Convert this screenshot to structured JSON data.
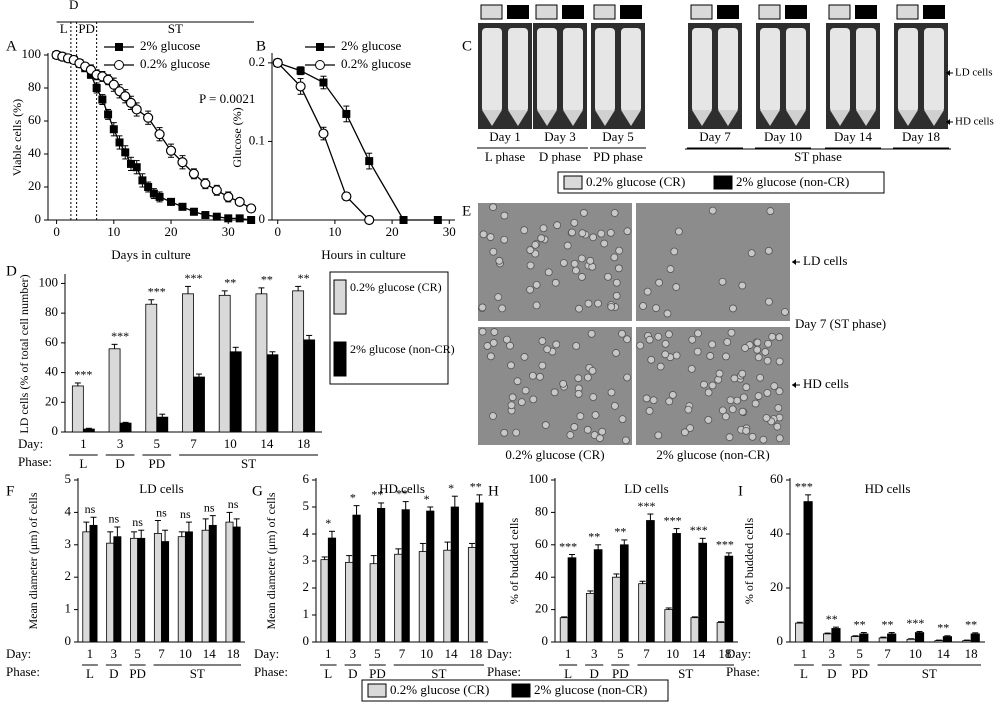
{
  "chart_data": [
    {
      "type": "line",
      "label": "A",
      "xlabel": "Days in culture",
      "ylabel": "Viable cells (%)",
      "xlim": [
        -1.5,
        34.5
      ],
      "xticks": [
        0,
        10,
        20,
        30
      ],
      "ylim": [
        0,
        100
      ],
      "yticks": [
        0,
        20,
        40,
        60,
        80,
        100
      ],
      "phases": [
        "L",
        "D",
        "PD",
        "ST"
      ],
      "phase_bounds": [
        2.5,
        3.5,
        7
      ],
      "annotation": "P = 0.0021",
      "legend": "upper right",
      "series": [
        {
          "name": "2% glucose",
          "color": "#000000",
          "marker": "square",
          "x": [
            0,
            1,
            2,
            3,
            4,
            5,
            6,
            7,
            8,
            9,
            10,
            11,
            12,
            13,
            14,
            15,
            16,
            17,
            18,
            20,
            22,
            24,
            26,
            28,
            30,
            32,
            34
          ],
          "values": [
            100,
            99,
            98,
            97,
            95,
            92,
            88,
            80,
            73,
            64,
            55,
            47,
            41,
            34,
            32,
            24,
            20,
            16,
            14,
            11,
            8,
            5,
            3,
            2,
            1,
            1,
            0
          ],
          "errors": [
            0,
            1,
            1,
            1,
            2,
            2,
            2,
            3,
            3,
            3,
            4,
            4,
            4,
            4,
            4,
            4,
            3,
            3,
            3,
            2,
            2,
            2,
            1,
            1,
            1,
            1,
            0
          ]
        },
        {
          "name": "0.2% glucose",
          "color": "#000000",
          "marker": "circle",
          "x": [
            0,
            1,
            2,
            3,
            4,
            5,
            6,
            7,
            8,
            9,
            10,
            11,
            12,
            13,
            14,
            16,
            18,
            20,
            22,
            24,
            26,
            28,
            30,
            32,
            34
          ],
          "values": [
            100,
            99,
            98,
            97,
            95,
            93,
            91,
            88,
            87,
            85,
            82,
            78,
            75,
            71,
            67,
            62,
            52,
            42,
            35,
            28,
            22,
            18,
            14,
            11,
            7
          ],
          "errors": [
            0,
            1,
            1,
            1,
            2,
            2,
            3,
            3,
            3,
            3,
            4,
            4,
            4,
            4,
            4,
            4,
            4,
            4,
            4,
            3,
            3,
            3,
            3,
            2,
            2
          ]
        }
      ]
    },
    {
      "type": "line",
      "label": "B",
      "xlabel": "Hours in culture",
      "ylabel": "Glucose (%)",
      "xlim": [
        -1,
        31
      ],
      "xticks": [
        0,
        10,
        20,
        30
      ],
      "ylim": [
        0,
        0.21
      ],
      "yticks": [
        0,
        0.1,
        0.2
      ],
      "legend": "upper right",
      "series": [
        {
          "name": "2% glucose",
          "color": "#000000",
          "marker": "square",
          "x": [
            0,
            4,
            8,
            12,
            16,
            22,
            28
          ],
          "values": [
            0.2,
            0.19,
            0.175,
            0.135,
            0.075,
            0,
            0
          ],
          "errors": [
            0,
            0.005,
            0.008,
            0.01,
            0.01,
            0,
            0
          ]
        },
        {
          "name": "0.2% glucose",
          "color": "#000000",
          "marker": "circle",
          "x": [
            0,
            4,
            8,
            12,
            16
          ],
          "values": [
            0.2,
            0.17,
            0.11,
            0.03,
            0
          ],
          "errors": [
            0,
            0.01,
            0.008,
            0.005,
            0
          ]
        }
      ]
    },
    {
      "type": "bar",
      "label": "D",
      "ylabel": "LD cells (% of total cell number)",
      "ylim": [
        0,
        105
      ],
      "yticks": [
        0,
        20,
        40,
        60,
        80,
        100
      ],
      "categories": [
        "1",
        "3",
        "5",
        "7",
        "10",
        "14",
        "18"
      ],
      "day_label": "Day:",
      "phase_label": "Phase:",
      "phases": [
        "L",
        "D",
        "PD",
        "ST"
      ],
      "legend": "right",
      "series": [
        {
          "name": "0.2% glucose (CR)",
          "color": "#d9d9d9",
          "values": [
            31,
            56,
            86,
            93,
            92,
            93,
            95
          ],
          "errors": [
            2,
            3,
            3,
            5,
            3,
            4,
            3
          ]
        },
        {
          "name": "2% glucose (non-CR)",
          "color": "#000000",
          "values": [
            2,
            6,
            10,
            37,
            54,
            52,
            62
          ],
          "errors": [
            0.5,
            0.5,
            2,
            2,
            3,
            2,
            3
          ]
        }
      ],
      "annotations": [
        "***",
        "***",
        "***",
        "***",
        "**",
        "**",
        "**"
      ]
    },
    {
      "type": "bar",
      "label": "F",
      "title": "LD cells",
      "ylabel": "Mean diameter (μm) of cells",
      "ylim": [
        0,
        5
      ],
      "yticks": [
        0,
        1,
        2,
        3,
        4,
        5
      ],
      "categories": [
        "1",
        "3",
        "5",
        "7",
        "10",
        "14",
        "18"
      ],
      "day_label": "Day:",
      "phase_label": "Phase:",
      "phases": [
        "L",
        "D",
        "PD",
        "ST"
      ],
      "legend": "bottom",
      "series": [
        {
          "name": "0.2% glucose (CR)",
          "color": "#d9d9d9",
          "values": [
            3.4,
            3.05,
            3.2,
            3.35,
            3.25,
            3.45,
            3.7
          ],
          "errors": [
            0.3,
            0.35,
            0.2,
            0.4,
            0.15,
            0.35,
            0.3
          ]
        },
        {
          "name": "2% glucose (non-CR)",
          "color": "#000000",
          "values": [
            3.6,
            3.25,
            3.2,
            3.1,
            3.4,
            3.6,
            3.55
          ],
          "errors": [
            0.25,
            0.3,
            0.25,
            0.35,
            0.3,
            0.3,
            0.25
          ]
        }
      ],
      "annotations": [
        "ns",
        "ns",
        "ns",
        "ns",
        "ns",
        "ns",
        "ns"
      ]
    },
    {
      "type": "bar",
      "label": "G",
      "title": "HD cells",
      "ylabel": "Mean diameter (μm) of cells",
      "ylim": [
        0,
        6
      ],
      "yticks": [
        0,
        1,
        2,
        3,
        4,
        5,
        6
      ],
      "categories": [
        "1",
        "3",
        "5",
        "7",
        "10",
        "14",
        "18"
      ],
      "day_label": "Day:",
      "phase_label": "Phase:",
      "phases": [
        "L",
        "D",
        "PD",
        "ST"
      ],
      "series": [
        {
          "name": "0.2% glucose (CR)",
          "color": "#d9d9d9",
          "values": [
            3.05,
            2.95,
            2.9,
            3.25,
            3.35,
            3.4,
            3.5
          ],
          "errors": [
            0.1,
            0.25,
            0.3,
            0.2,
            0.3,
            0.3,
            0.15
          ]
        },
        {
          "name": "2% glucose (non-CR)",
          "color": "#000000",
          "values": [
            3.85,
            4.7,
            4.95,
            4.9,
            4.85,
            5.0,
            5.15
          ],
          "errors": [
            0.25,
            0.35,
            0.2,
            0.3,
            0.15,
            0.4,
            0.3
          ]
        }
      ],
      "annotations": [
        "*",
        "*",
        "**",
        "**",
        "*",
        "*",
        "**"
      ]
    },
    {
      "type": "bar",
      "label": "H",
      "title": "LD cells",
      "ylabel": "% of budded cells",
      "ylim": [
        0,
        100
      ],
      "yticks": [
        0,
        20,
        40,
        60,
        80,
        100
      ],
      "categories": [
        "1",
        "3",
        "5",
        "7",
        "10",
        "14",
        "18"
      ],
      "day_label": "Day:",
      "phase_label": "Phase:",
      "phases": [
        "L",
        "D",
        "PD",
        "ST"
      ],
      "series": [
        {
          "name": "0.2% glucose (CR)",
          "color": "#d9d9d9",
          "values": [
            15,
            30,
            40,
            36,
            20,
            15,
            12
          ],
          "errors": [
            0.5,
            1.5,
            2,
            1.5,
            1,
            0.5,
            0.5
          ]
        },
        {
          "name": "2% glucose (non-CR)",
          "color": "#000000",
          "values": [
            52,
            57,
            60,
            75,
            67,
            61,
            53
          ],
          "errors": [
            2,
            3,
            3,
            4,
            3,
            3,
            2
          ]
        }
      ],
      "annotations": [
        "***",
        "**",
        "**",
        "***",
        "***",
        "***",
        "***"
      ]
    },
    {
      "type": "bar",
      "label": "I",
      "title": "HD cells",
      "ylabel": "% of budded cells",
      "ylim": [
        0,
        60
      ],
      "yticks": [
        0,
        20,
        40,
        60
      ],
      "categories": [
        "1",
        "3",
        "5",
        "7",
        "10",
        "14",
        "18"
      ],
      "day_label": "Day:",
      "phase_label": "Phase:",
      "phases": [
        "L",
        "D",
        "PD",
        "ST"
      ],
      "series": [
        {
          "name": "0.2% glucose (CR)",
          "color": "#d9d9d9",
          "values": [
            7,
            3,
            2,
            1.5,
            1,
            0.5,
            0.5
          ],
          "errors": [
            0.3,
            0.3,
            0.3,
            0.3,
            0.2,
            0.2,
            0.2
          ]
        },
        {
          "name": "2% glucose (non-CR)",
          "color": "#000000",
          "values": [
            52,
            5,
            3,
            3,
            3.5,
            2,
            3
          ],
          "errors": [
            2.5,
            0.5,
            0.5,
            0.5,
            0.4,
            0.3,
            0.4
          ]
        }
      ],
      "annotations": [
        "***",
        "**",
        "**",
        "**",
        "***",
        "**",
        "**"
      ]
    }
  ],
  "photos": {
    "C": {
      "label": "C",
      "days": [
        "Day 1",
        "Day 3",
        "Day 5",
        "Day 7",
        "Day 10",
        "Day 14",
        "Day 18"
      ],
      "phases": [
        "L phase",
        "D phase",
        "PD phase",
        "ST phase"
      ],
      "fractions": [
        "LD cells",
        "HD cells"
      ],
      "legend": [
        "0.2% glucose (CR)",
        "2% glucose (non-CR)"
      ]
    },
    "E": {
      "label": "E",
      "fractions": [
        "LD cells",
        "HD cells"
      ],
      "condition": "Day 7 (ST phase)",
      "columns": [
        "0.2% glucose (CR)",
        "2% glucose (non-CR)"
      ]
    }
  }
}
